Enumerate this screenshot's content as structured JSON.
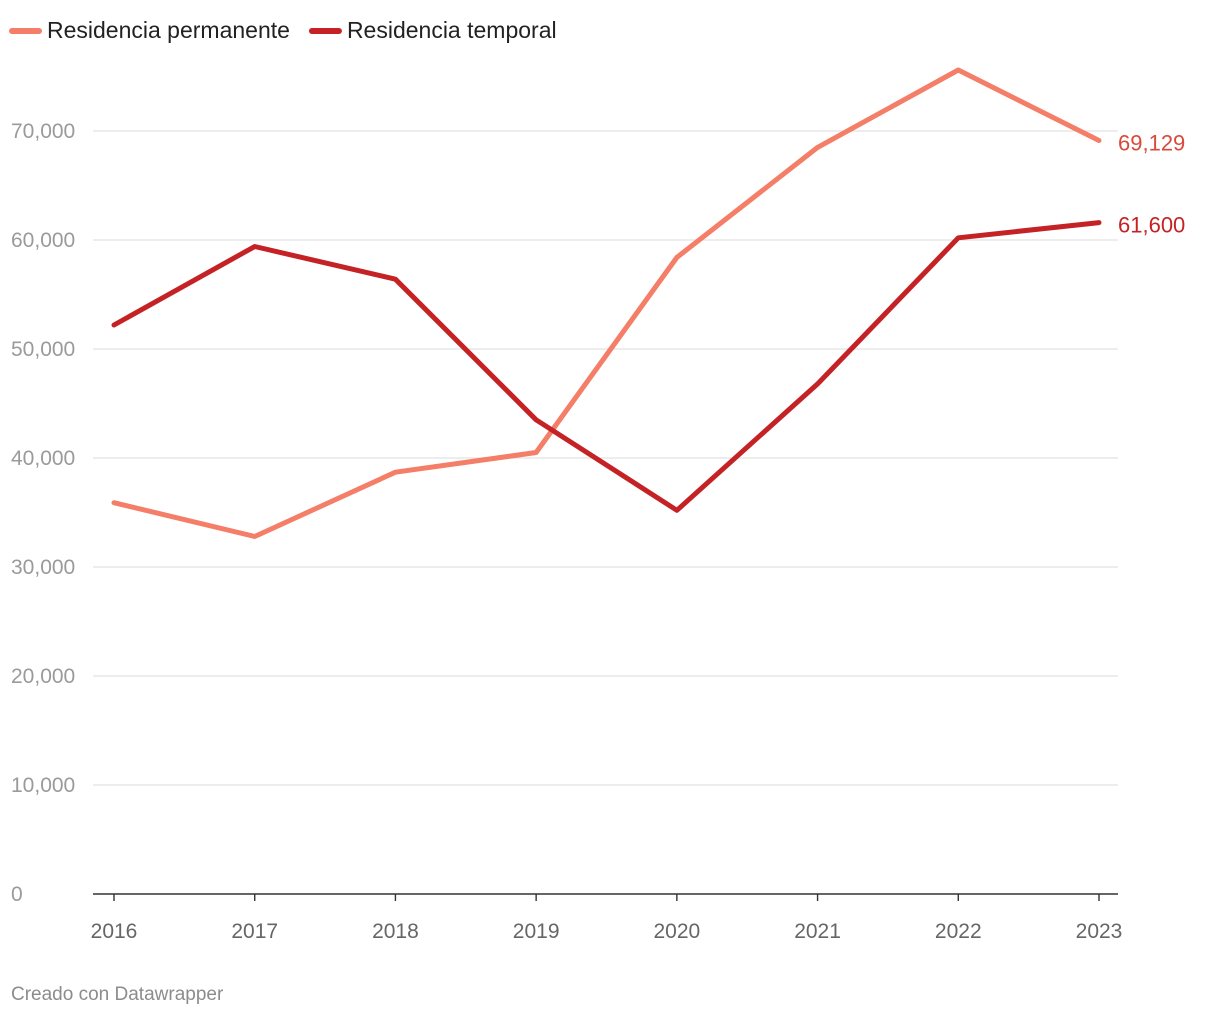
{
  "chart_data": {
    "type": "line",
    "title": "",
    "xlabel": "",
    "ylabel": "",
    "x": [
      "2016",
      "2017",
      "2018",
      "2019",
      "2020",
      "2021",
      "2022",
      "2023"
    ],
    "ylim": [
      0,
      70000
    ],
    "yticks": [
      0,
      10000,
      20000,
      30000,
      40000,
      50000,
      60000,
      70000
    ],
    "ytick_labels": [
      "0",
      "10,000",
      "20,000",
      "30,000",
      "40,000",
      "50,000",
      "60,000",
      "70,000"
    ],
    "grid": true,
    "legend_position": "top-left",
    "series": [
      {
        "name": "Residencia permanente",
        "color": "#f47e67",
        "values": [
          35900,
          32800,
          38700,
          40500,
          58400,
          68500,
          75600,
          69129
        ],
        "end_label": "69,129",
        "end_label_color": "#d84a3a"
      },
      {
        "name": "Residencia temporal",
        "color": "#c42225",
        "values": [
          52200,
          59400,
          56400,
          43500,
          35200,
          46800,
          60200,
          61600
        ],
        "end_label": "61,600",
        "end_label_color": "#c42225"
      }
    ]
  },
  "footer": {
    "credit": "Creado con Datawrapper"
  }
}
